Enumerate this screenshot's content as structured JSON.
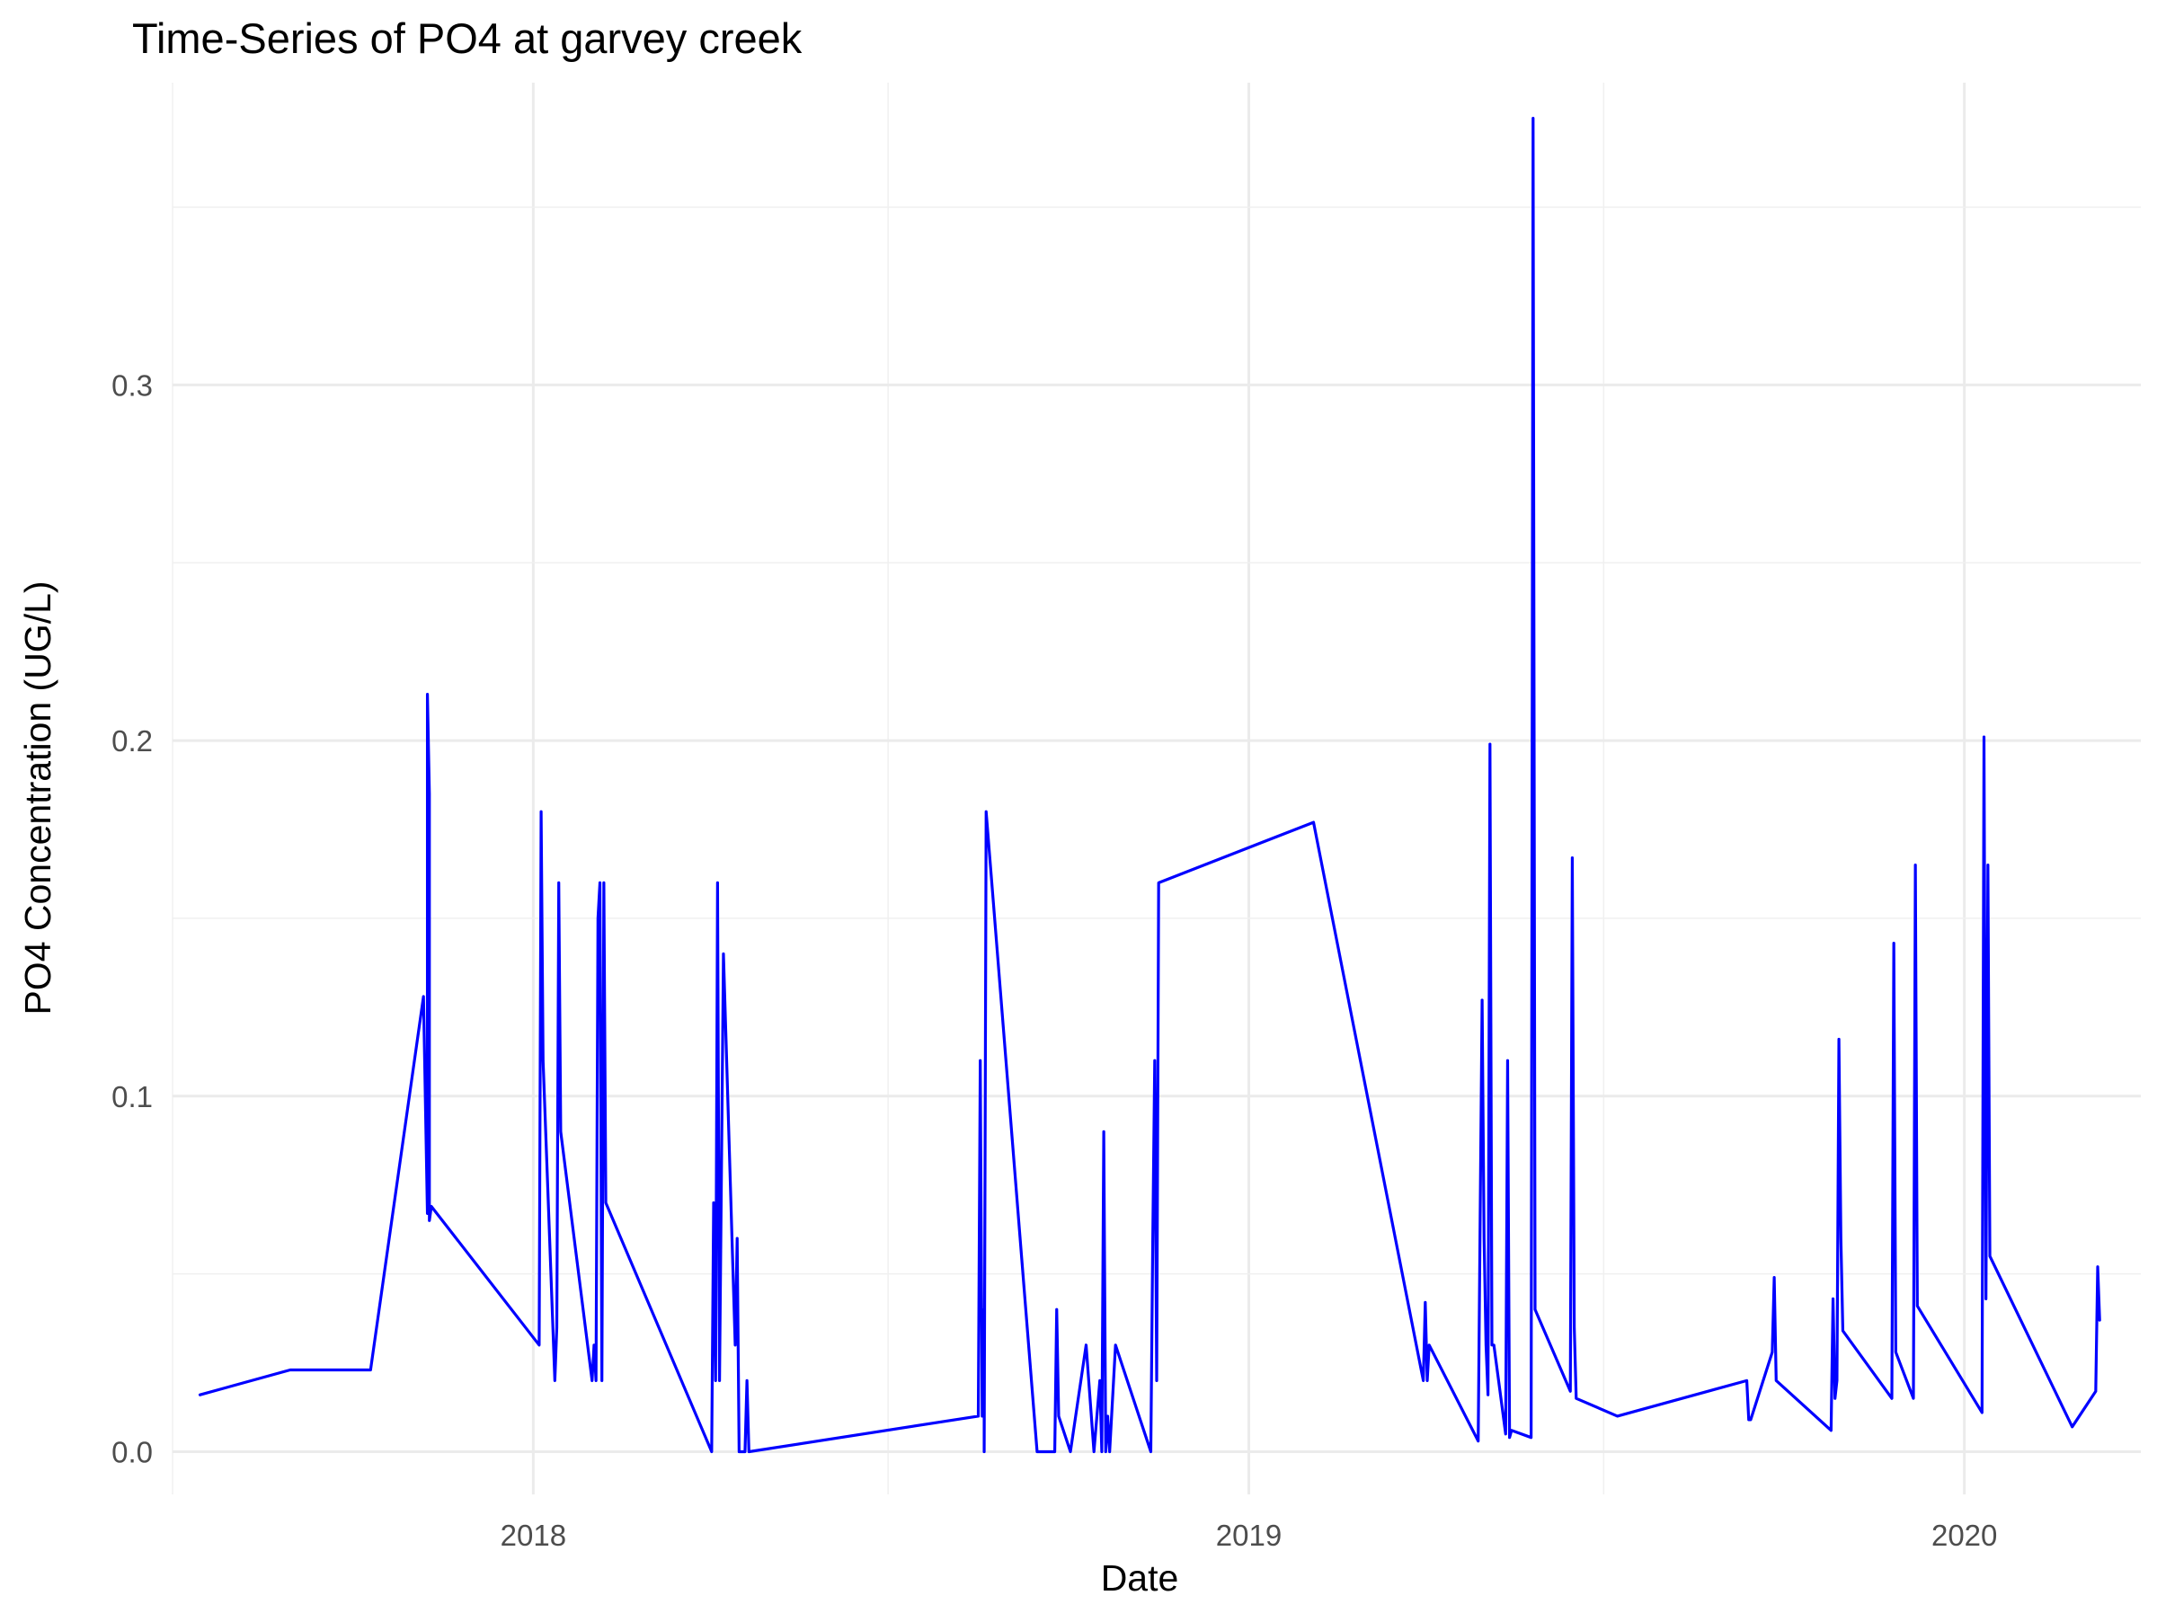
{
  "chart_data": {
    "type": "line",
    "title": "Time-Series of PO4 at garvey creek",
    "xlabel": "Date",
    "ylabel": "PO4 Concentration (UG/L)",
    "xlim": [
      "2017-07-01",
      "2020-03-31"
    ],
    "ylim": [
      -0.012,
      0.385
    ],
    "x_ticks": [
      "2018-01-01",
      "2019-01-01",
      "2020-01-01"
    ],
    "x_tick_labels": [
      "2018",
      "2019",
      "2020"
    ],
    "y_ticks": [
      0.0,
      0.1,
      0.2,
      0.3
    ],
    "y_tick_labels": [
      "0.0",
      "0.1",
      "0.2",
      "0.3"
    ],
    "grid": true,
    "line_color": "#0000FF",
    "series": [
      {
        "x": [
          "2017-07-15",
          "2017-08-30",
          "2017-10-10",
          "2017-11-06",
          "2017-11-08",
          "2017-11-08",
          "2017-11-09",
          "2017-11-09",
          "2017-11-10",
          "2018-01-04",
          "2018-01-05",
          "2018-01-06",
          "2018-01-12",
          "2018-01-13",
          "2018-01-14",
          "2018-01-15",
          "2018-01-31",
          "2018-02-01",
          "2018-02-02",
          "2018-02-03",
          "2018-02-04",
          "2018-02-05",
          "2018-02-06",
          "2018-02-07",
          "2018-04-02",
          "2018-04-03",
          "2018-04-04",
          "2018-04-05",
          "2018-04-06",
          "2018-04-08",
          "2018-04-14",
          "2018-04-15",
          "2018-04-16",
          "2018-04-19",
          "2018-04-20",
          "2018-04-21",
          "2018-08-16",
          "2018-08-17",
          "2018-08-18",
          "2018-08-19",
          "2018-08-19",
          "2018-08-20",
          "2018-09-15",
          "2018-09-24",
          "2018-09-25",
          "2018-09-26",
          "2018-10-02",
          "2018-10-10",
          "2018-10-14",
          "2018-10-17",
          "2018-10-18",
          "2018-10-19",
          "2018-10-20",
          "2018-10-21",
          "2018-10-22",
          "2018-10-25",
          "2018-11-12",
          "2018-11-13",
          "2018-11-14",
          "2018-11-15",
          "2018-11-16",
          "2019-02-03",
          "2019-03-31",
          "2019-04-01",
          "2019-04-02",
          "2019-04-03",
          "2019-04-28",
          "2019-04-29",
          "2019-04-30",
          "2019-05-01",
          "2019-05-02",
          "2019-05-03",
          "2019-05-04",
          "2019-05-05",
          "2019-05-06",
          "2019-05-12",
          "2019-05-13",
          "2019-05-14",
          "2019-05-15",
          "2019-05-25",
          "2019-05-26",
          "2019-05-27",
          "2019-06-14",
          "2019-06-15",
          "2019-06-16",
          "2019-06-17",
          "2019-07-08",
          "2019-09-12",
          "2019-09-13",
          "2019-09-14",
          "2019-09-25",
          "2019-09-26",
          "2019-09-27",
          "2019-10-25",
          "2019-10-26",
          "2019-10-27",
          "2019-10-28",
          "2019-10-29",
          "2019-10-30",
          "2019-10-31",
          "2019-11-25",
          "2019-11-26",
          "2019-11-27",
          "2019-12-06",
          "2019-12-07",
          "2019-12-08",
          "2020-01-10",
          "2020-01-11",
          "2020-01-12",
          "2020-01-13",
          "2020-01-14",
          "2020-02-25",
          "2020-03-08",
          "2020-03-09",
          "2020-03-10"
        ],
        "values": [
          0.016,
          0.023,
          0.023,
          0.128,
          0.067,
          0.213,
          0.185,
          0.065,
          0.069,
          0.03,
          0.18,
          0.11,
          0.02,
          0.035,
          0.16,
          0.09,
          0.02,
          0.03,
          0.02,
          0.15,
          0.16,
          0.02,
          0.16,
          0.07,
          0.0,
          0.07,
          0.02,
          0.16,
          0.02,
          0.14,
          0.03,
          0.06,
          0.0,
          0.0,
          0.02,
          0.0,
          0.01,
          0.11,
          0.01,
          0.04,
          0.0,
          0.18,
          0.0,
          0.0,
          0.04,
          0.01,
          0.0,
          0.03,
          0.0,
          0.02,
          0.0,
          0.09,
          0.0,
          0.01,
          0.0,
          0.03,
          0.0,
          0.06,
          0.11,
          0.02,
          0.16,
          0.177,
          0.02,
          0.042,
          0.02,
          0.03,
          0.003,
          0.066,
          0.127,
          0.06,
          0.03,
          0.016,
          0.199,
          0.03,
          0.03,
          0.005,
          0.11,
          0.004,
          0.006,
          0.004,
          0.375,
          0.04,
          0.017,
          0.167,
          0.035,
          0.015,
          0.01,
          0.02,
          0.009,
          0.009,
          0.028,
          0.049,
          0.02,
          0.006,
          0.043,
          0.015,
          0.02,
          0.116,
          0.06,
          0.034,
          0.015,
          0.143,
          0.028,
          0.015,
          0.165,
          0.041,
          0.011,
          0.201,
          0.043,
          0.165,
          0.055,
          0.007,
          0.017,
          0.052,
          0.037
        ]
      }
    ]
  }
}
